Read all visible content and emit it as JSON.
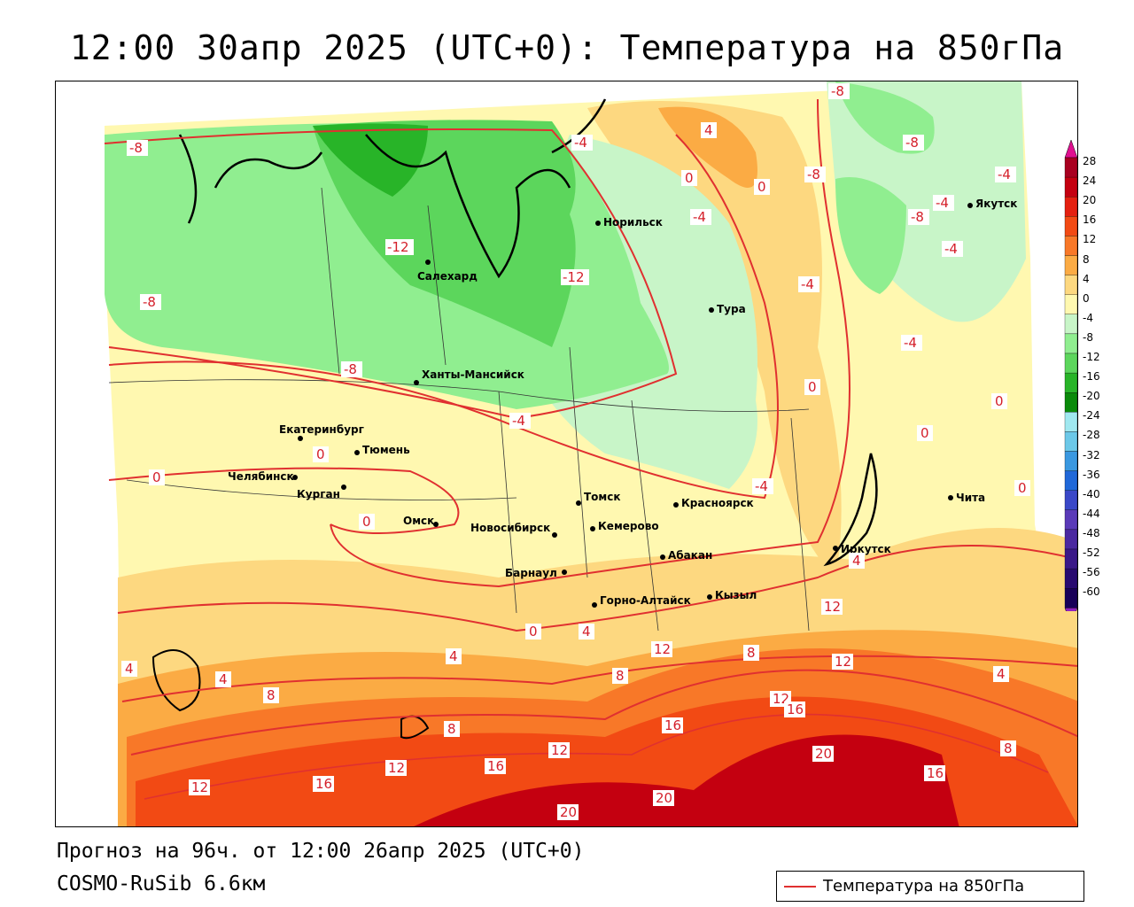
{
  "title": "12:00 30апр 2025 (UTC+0): Температура на 850гПа",
  "footer": {
    "forecast": "Прогноз на 96ч. от 12:00 26апр 2025 (UTC+0)",
    "model": "COSMO-RuSib 6.6км"
  },
  "legend": {
    "label": "Температура на 850гПа",
    "line_color": "#e03030"
  },
  "colorbar": {
    "levels": [
      "28",
      "24",
      "20",
      "16",
      "12",
      "8",
      "4",
      "0",
      "-4",
      "-8",
      "-12",
      "-16",
      "-20",
      "-24",
      "-28",
      "-32",
      "-36",
      "-40",
      "-44",
      "-48",
      "-52",
      "-56",
      "-60"
    ],
    "colors": [
      "#a80020",
      "#c40010",
      "#e42010",
      "#f24a14",
      "#f87828",
      "#fbab44",
      "#fdd880",
      "#fff8b0",
      "#c8f5c8",
      "#90ee90",
      "#5cd65c",
      "#28b428",
      "#0a8a0a",
      "#a0e8f0",
      "#6cc8e8",
      "#3a98e0",
      "#2068d8",
      "#3a48c8",
      "#5a3ab8",
      "#4a28a0",
      "#3a1888",
      "#280a70",
      "#180058"
    ],
    "top_color": "#e01090",
    "bottom_color": "#9020c0"
  },
  "cities": [
    {
      "name": "Норильск"
    },
    {
      "name": "Якутск"
    },
    {
      "name": "Салехард"
    },
    {
      "name": "Тура"
    },
    {
      "name": "Ханты-Мансийск"
    },
    {
      "name": "Екатеринбург"
    },
    {
      "name": "Тюмень"
    },
    {
      "name": "Челябинск"
    },
    {
      "name": "Курган"
    },
    {
      "name": "Омск"
    },
    {
      "name": "Новосибирск"
    },
    {
      "name": "Томск"
    },
    {
      "name": "Кемерово"
    },
    {
      "name": "Красноярск"
    },
    {
      "name": "Барнаул"
    },
    {
      "name": "Абакан"
    },
    {
      "name": "Иркутск"
    },
    {
      "name": "Горно-Алтайск"
    },
    {
      "name": "Кызыл"
    },
    {
      "name": "Чита"
    }
  ],
  "isotherm_labels": [
    "-8",
    "-4",
    "4",
    "0",
    "-8",
    "-8",
    "0",
    "-4",
    "-8",
    "-4",
    "-12",
    "-12",
    "-4",
    "-8",
    "-4",
    "-4",
    "-8",
    "-8",
    "-4",
    "0",
    "0",
    "0",
    "0",
    "-4",
    "0",
    "0",
    "-4",
    "4",
    "0",
    "0",
    "4",
    "12",
    "4",
    "4",
    "12",
    "8",
    "4",
    "8",
    "12",
    "8",
    "12",
    "16",
    "16",
    "8",
    "12",
    "16",
    "20",
    "12",
    "16",
    "20",
    "16",
    "8",
    "12",
    "20",
    "4"
  ]
}
